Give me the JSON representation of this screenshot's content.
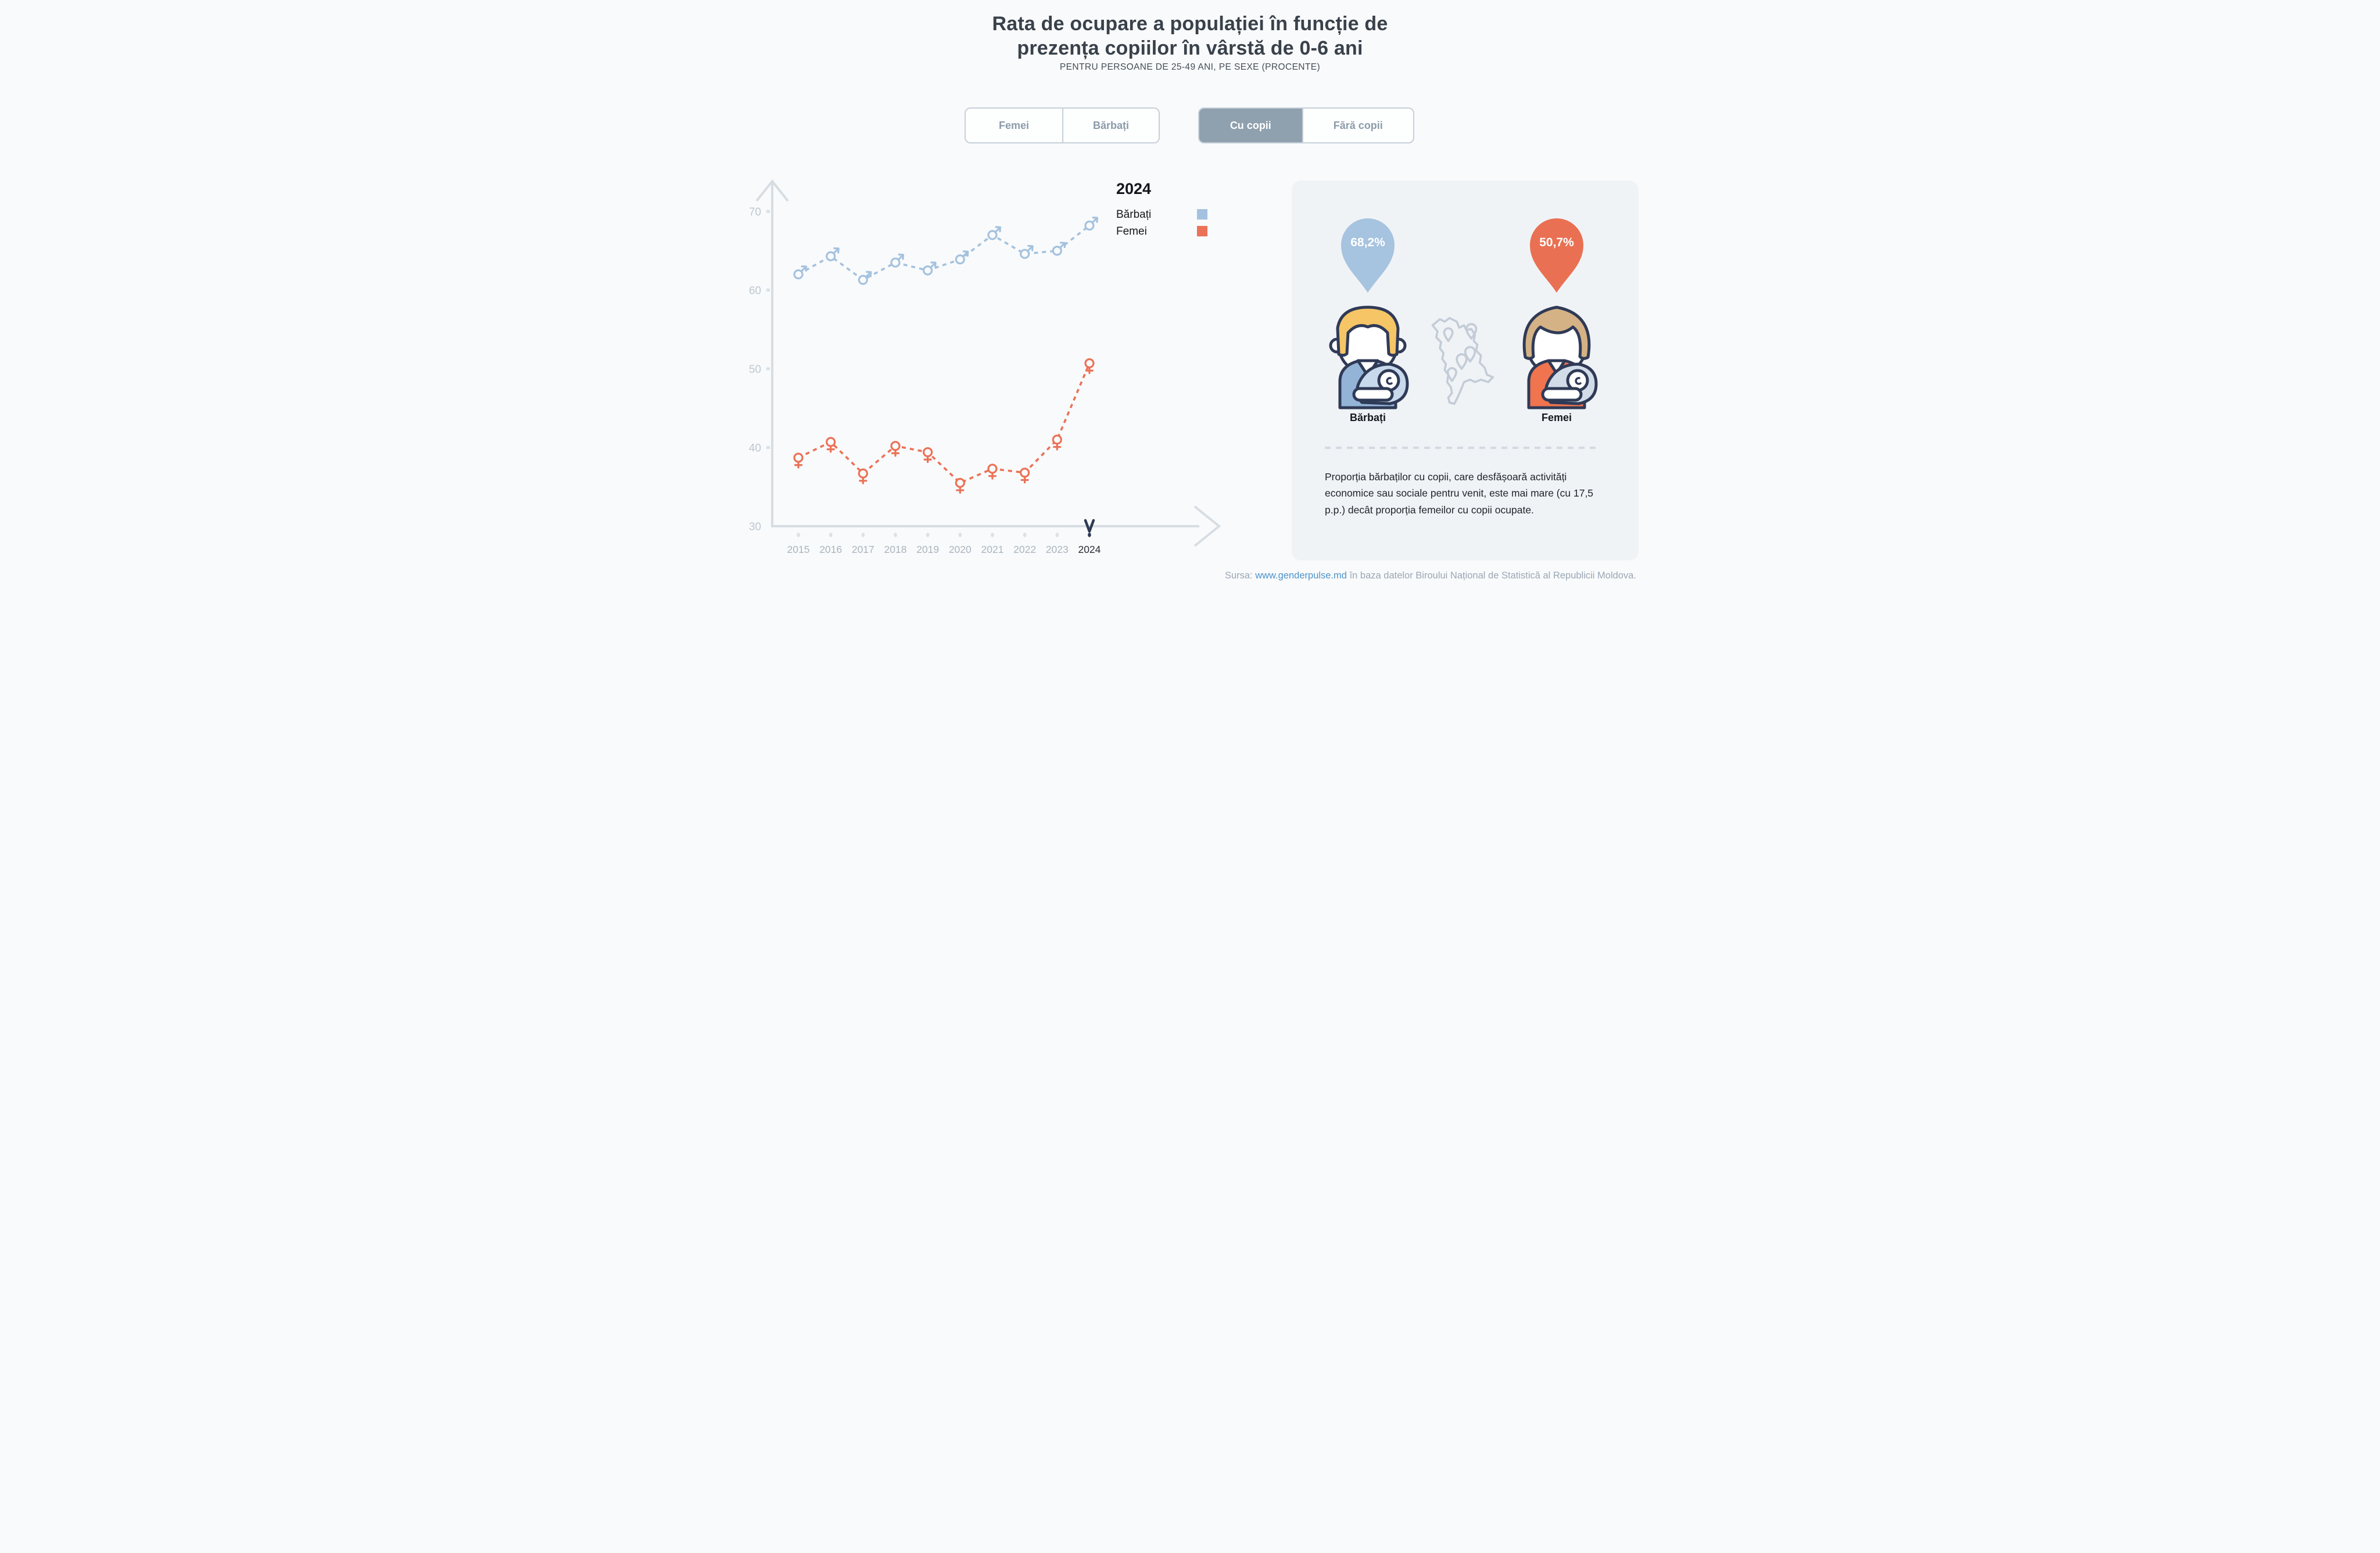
{
  "header": {
    "title_lines": [
      "Rata de ocupare a populației în funcție de",
      "prezența copiilor în vârstă de 0-6 ani"
    ],
    "subtitle": "PENTRU PERSOANE DE 25-49 ANI, PE SEXE (PROCENTE)"
  },
  "filters": {
    "sex_toggle": {
      "options": [
        {
          "label": "Femei",
          "selected": false
        },
        {
          "label": "Bărbați",
          "selected": false
        }
      ]
    },
    "children_toggle": {
      "options": [
        {
          "label": "Cu copii",
          "selected": true
        },
        {
          "label": "Fără copii",
          "selected": false
        }
      ]
    }
  },
  "legend": {
    "year": "2024",
    "items": [
      {
        "label": "Bărbați",
        "color": "#A4C2DF"
      },
      {
        "label": "Femei",
        "color": "#EB7257"
      }
    ]
  },
  "chart_data": {
    "type": "line",
    "title": "Rata de ocupare a populației în funcție de prezența copiilor în vârstă de 0-6 ani",
    "xlabel": "",
    "ylabel": "",
    "x": [
      "2015",
      "2016",
      "2017",
      "2018",
      "2019",
      "2020",
      "2021",
      "2022",
      "2023",
      "2024"
    ],
    "series": [
      {
        "name": "Bărbați",
        "marker": "male",
        "color": "#A4C2DF",
        "values": [
          62.0,
          64.3,
          61.3,
          63.5,
          62.5,
          63.9,
          67.0,
          64.6,
          65.0,
          68.2
        ]
      },
      {
        "name": "Femei",
        "marker": "female",
        "color": "#EB7257",
        "values": [
          38.7,
          40.7,
          36.7,
          40.2,
          39.4,
          35.5,
          37.3,
          36.8,
          41.0,
          50.7
        ]
      }
    ],
    "yticks": [
      30,
      40,
      50,
      60,
      70
    ],
    "ylim": [
      30,
      74
    ],
    "selected_x": "2024",
    "line_style": "dashed",
    "grid": false,
    "legend_position": "inside-top-right"
  },
  "infocard": {
    "male": {
      "value": "68,2%",
      "label": "Bărbați",
      "color": "#A6C3DF"
    },
    "female": {
      "value": "50,7%",
      "label": "Femei",
      "color": "#E97052"
    },
    "note": "Proporția bărbaților cu copii, care desfășoară activități economice sau sociale pentru venit, este mai mare (cu 17,5 p.p.) decât proporția femeilor cu copii ocupate."
  },
  "source": {
    "prefix": "Sursa:",
    "link_text": "www.genderpulse.md",
    "suffix": "în baza datelor Biroului Național de Statistică al Republicii Moldova."
  }
}
